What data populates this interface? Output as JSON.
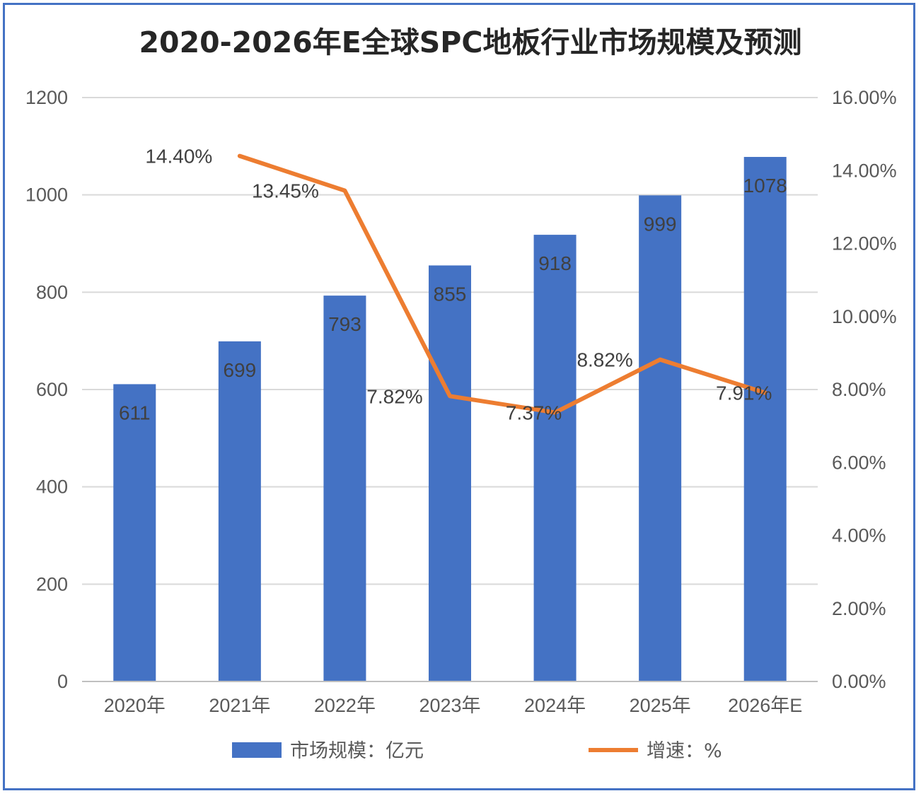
{
  "chart_data": {
    "type": "bar+line",
    "title": "2020-2026年E全球SPC地板行业市场规模及预测",
    "categories": [
      "2020年",
      "2021年",
      "2022年",
      "2023年",
      "2024年",
      "2025年",
      "2026年E"
    ],
    "series": [
      {
        "name": "市场规模：亿元",
        "type": "bar",
        "axis": "left",
        "color": "#4472c4",
        "values": [
          611,
          699,
          793,
          855,
          918,
          999,
          1078
        ],
        "labels": [
          "611",
          "699",
          "793",
          "855",
          "918",
          "999",
          "1078"
        ]
      },
      {
        "name": "增速：%",
        "type": "line",
        "axis": "right",
        "color": "#ed7d31",
        "values": [
          null,
          14.4,
          13.45,
          7.82,
          7.37,
          8.82,
          7.91
        ],
        "labels": [
          null,
          "14.40%",
          "13.45%",
          "7.82%",
          "7.37%",
          "8.82%",
          "7.91%"
        ]
      }
    ],
    "y_left": {
      "min": 0,
      "max": 1200,
      "ticks": [
        "0",
        "200",
        "400",
        "600",
        "800",
        "1000",
        "1200"
      ]
    },
    "y_right": {
      "min": 0,
      "max": 16,
      "ticks": [
        "0.00%",
        "2.00%",
        "4.00%",
        "6.00%",
        "8.00%",
        "10.00%",
        "12.00%",
        "14.00%",
        "16.00%"
      ]
    },
    "grid": true,
    "legend": "bottom"
  }
}
